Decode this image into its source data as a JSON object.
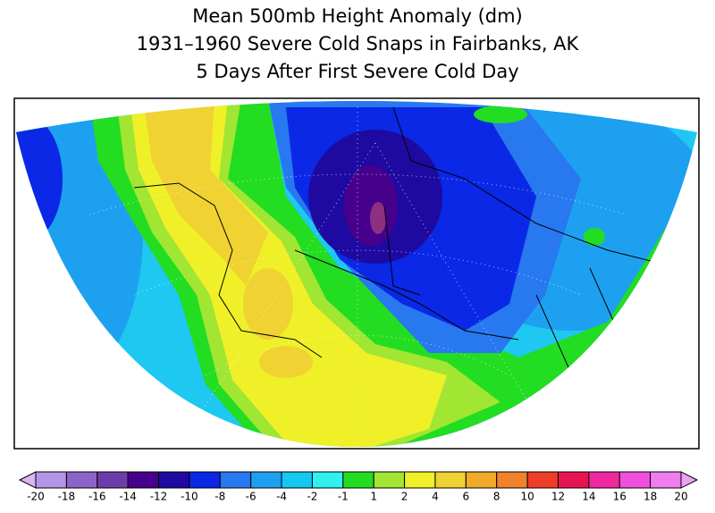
{
  "title": [
    "Mean 500mb Height Anomaly (dm)",
    "1931–1960 Severe Cold Snaps in Fairbanks, AK",
    "5 Days After First Severe Cold Day"
  ],
  "colorbar": {
    "levels": [
      -20,
      -18,
      -16,
      -14,
      -12,
      -10,
      -8,
      -6,
      -4,
      -2,
      -1,
      1,
      2,
      4,
      6,
      8,
      10,
      12,
      14,
      16,
      18,
      20
    ],
    "colors": [
      "#dcb4f0",
      "#b496e6",
      "#8c64c8",
      "#6e3caa",
      "#46008c",
      "#1e0aa0",
      "#0a28e6",
      "#2878f0",
      "#1ea0f0",
      "#14c8f0",
      "#30f0f0",
      "#22dd22",
      "#a0e632",
      "#f0f028",
      "#f0d232",
      "#f0aa28",
      "#f08228",
      "#f03c28",
      "#e61450",
      "#f028a0",
      "#f050dc",
      "#f07df0",
      "#f0a0f0"
    ]
  }
}
